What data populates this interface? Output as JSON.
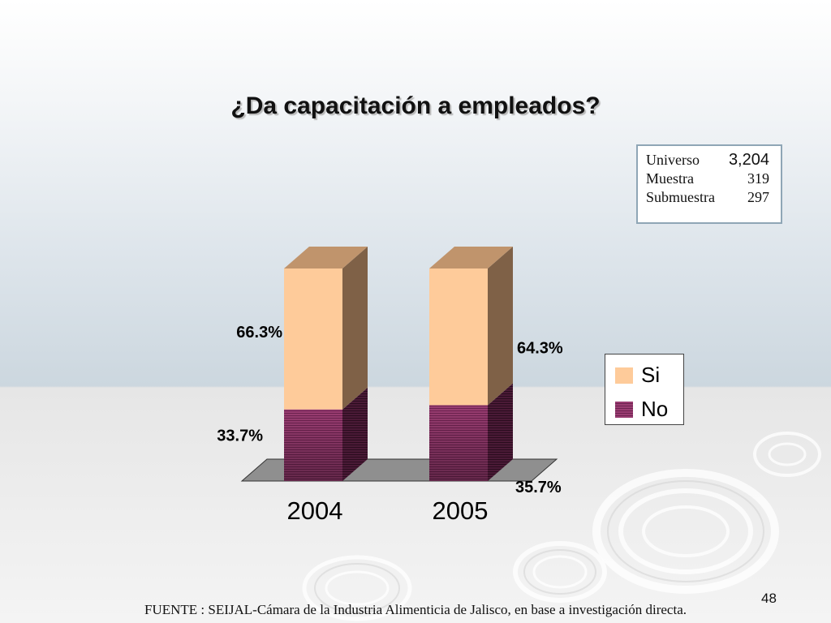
{
  "slide": {
    "title": "¿Da capacitación a empleados?",
    "source": "FUENTE : SEIJAL-Cámara de la Industria Alimenticia de Jalisco,  en base a investigación directa.",
    "page_number": "48"
  },
  "sample_box": {
    "universo_label": "Universo",
    "universo_value": "3,204",
    "muestra_label": "Muestra",
    "muestra_value": "319",
    "submuestra_label": "Submuestra",
    "submuestra_value": "297"
  },
  "chart_data": {
    "type": "bar",
    "stacked": true,
    "three_d": true,
    "title": "¿Da capacitación a empleados?",
    "categories": [
      "2004",
      "2005"
    ],
    "series": [
      {
        "name": "No",
        "values": [
          33.7,
          35.7
        ],
        "labels": [
          "33.7%",
          "35.7%"
        ],
        "color": "#9a3d72"
      },
      {
        "name": "Si",
        "values": [
          66.3,
          64.3
        ],
        "labels": [
          "66.3%",
          "64.3%"
        ],
        "color": "#fecb9a"
      }
    ],
    "ylim": [
      0,
      100
    ],
    "legend_position": "right",
    "grid": false
  },
  "colors": {
    "si_front": "#fecb9a",
    "si_side": "#7f6147",
    "si_top": "#c0946c",
    "no_front": "#9a3d72",
    "no_side": "#4a1a36",
    "floor": "#8f8f8f"
  }
}
